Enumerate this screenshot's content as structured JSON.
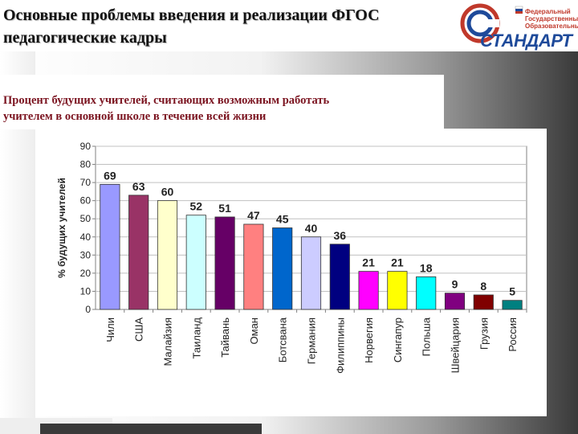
{
  "header": {
    "title_line1": "Основные проблемы  введения и реализации ФГОС",
    "title_line2": "педагогические кадры"
  },
  "logo": {
    "line1": "Федеральный",
    "line2": "Государственный",
    "line3": "Образовательный",
    "word": "СТАНДАРТ"
  },
  "subtitle": {
    "line1": "Процент будущих учителей, считающих возможным  работать",
    "line2": "учителем в основной школе в течение всей жизни"
  },
  "chart_data": {
    "type": "bar",
    "ylabel": "% будущих учителей",
    "ylim": [
      0,
      90
    ],
    "yticks": [
      0,
      10,
      20,
      30,
      40,
      50,
      60,
      70,
      80,
      90
    ],
    "grid": true,
    "categories": [
      "Чили",
      "США",
      "Малайзия",
      "Таиланд",
      "Тайвань",
      "Оман",
      "Ботсвана",
      "Германия",
      "Филиппины",
      "Норвегия",
      "Сингапур",
      "Польша",
      "Швейцария",
      "Грузия",
      "Россия"
    ],
    "values": [
      69,
      63,
      60,
      52,
      51,
      47,
      45,
      40,
      36,
      21,
      21,
      18,
      9,
      8,
      5
    ],
    "colors": [
      "#9999ff",
      "#993366",
      "#ffffcc",
      "#ccffff",
      "#660066",
      "#ff8080",
      "#0066cc",
      "#ccccff",
      "#000080",
      "#ff00ff",
      "#ffff00",
      "#00ffff",
      "#800080",
      "#800000",
      "#008080"
    ]
  }
}
